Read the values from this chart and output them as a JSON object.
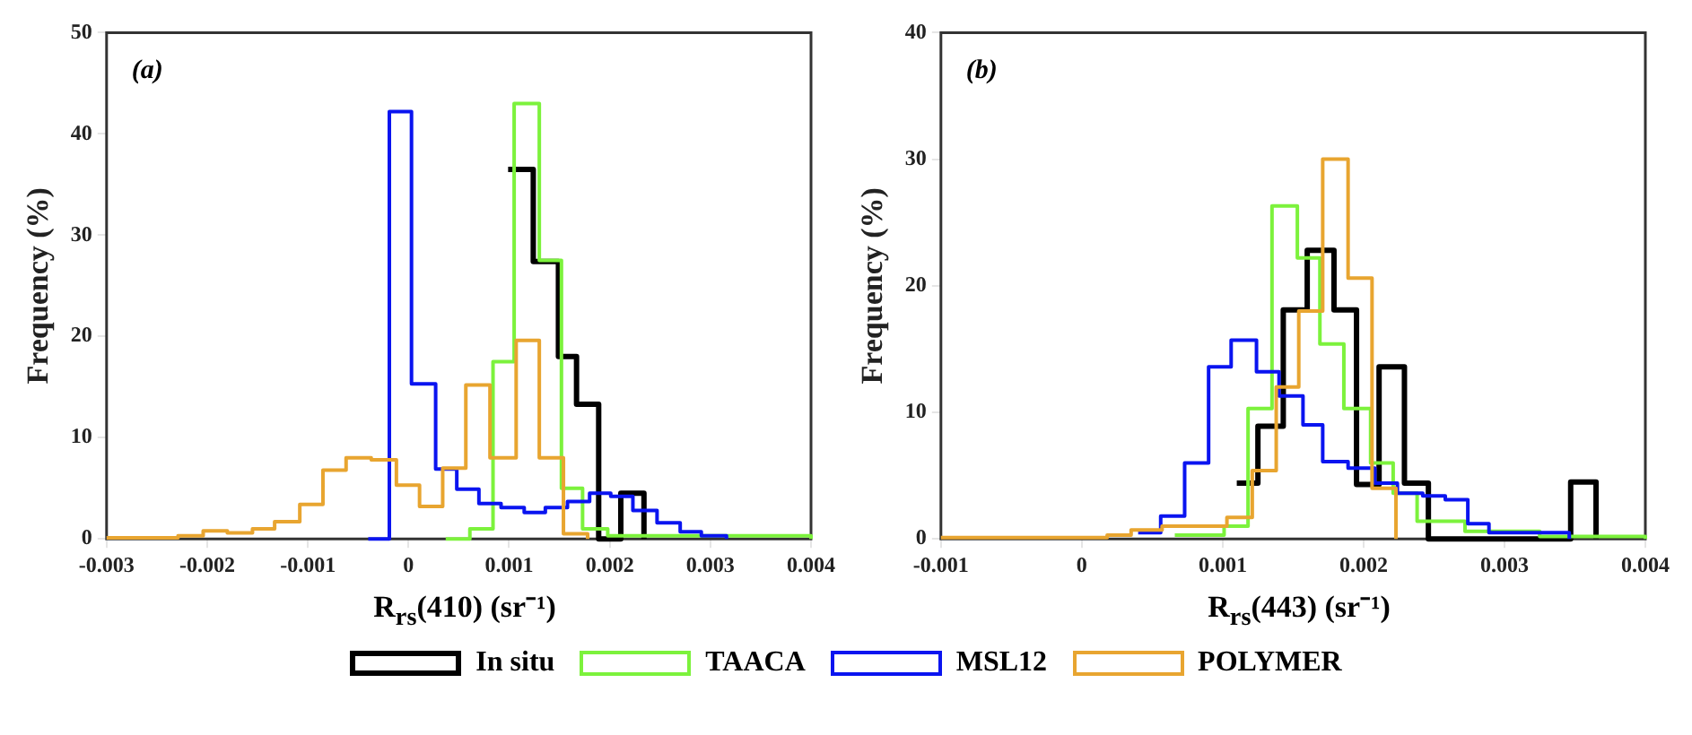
{
  "chart_data": [
    {
      "type": "step",
      "xlabel": "R$_{rs}$(410) (sr⁻¹)",
      "ylabel": "Frequency (%)",
      "annotations": [
        "(a)"
      ],
      "xlim": [
        -0.003,
        0.004
      ],
      "xticks": [
        -0.003,
        -0.002,
        -0.001,
        0,
        0.001,
        0.002,
        0.003,
        0.004
      ],
      "ylim": [
        0,
        50
      ],
      "yticks": [
        0,
        10,
        20,
        30,
        40,
        50
      ],
      "grid": false,
      "legend": "bottom",
      "series": [
        {
          "name": "In situ",
          "color": "#000000",
          "x": [
            0.00099,
            0.00124,
            0.00149,
            0.00167,
            0.00189,
            0.00211,
            0.00234
          ],
          "values": [
            36.5,
            27.4,
            18,
            13.3,
            0,
            4.5,
            0
          ]
        },
        {
          "name": "TAACA",
          "color": "#7cf23c",
          "x": [
            0.00037,
            0.00061,
            0.00084,
            0.00105,
            0.0013,
            0.00152,
            0.00173,
            0.00198,
            0.004
          ],
          "values": [
            0,
            1,
            17.5,
            43,
            27.5,
            5,
            1,
            0.3,
            0
          ]
        },
        {
          "name": "MSL12",
          "color": "#0a14f0",
          "x": [
            -0.0004,
            -0.00019,
            3e-05,
            0.00027,
            0.00048,
            0.0007,
            0.00092,
            0.00115,
            0.00136,
            0.00158,
            0.0018,
            0.00201,
            0.00223,
            0.00247,
            0.0027,
            0.00291,
            0.00316
          ],
          "values": [
            0,
            42.2,
            15.3,
            6.9,
            4.9,
            3.5,
            3.1,
            2.6,
            3.1,
            3.7,
            4.5,
            4.2,
            2.8,
            1.6,
            0.7,
            0.3,
            0
          ]
        },
        {
          "name": "POLYMER",
          "color": "#e8a530",
          "x": [
            -0.003,
            -0.00229,
            -0.00204,
            -0.0018,
            -0.00155,
            -0.00133,
            -0.00108,
            -0.00085,
            -0.00062,
            -0.00037,
            -0.00012,
            0.00011,
            0.00034,
            0.00057,
            0.00081,
            0.00107,
            0.0013,
            0.00154,
            0.00178
          ],
          "values": [
            0.1,
            0.3,
            0.8,
            0.6,
            1,
            1.7,
            3.4,
            6.8,
            8,
            7.8,
            5.3,
            3.2,
            7,
            15.2,
            8,
            19.6,
            8,
            0.5,
            0
          ]
        }
      ]
    },
    {
      "type": "step",
      "xlabel": "R$_{rs}$(443) (sr⁻¹)",
      "ylabel": "Frequency (%)",
      "annotations": [
        "(b)"
      ],
      "xlim": [
        -0.001,
        0.004
      ],
      "xticks": [
        -0.001,
        0,
        0.001,
        0.002,
        0.003,
        0.004
      ],
      "ylim": [
        0,
        40
      ],
      "yticks": [
        0,
        10,
        20,
        30,
        40
      ],
      "grid": false,
      "series": [
        {
          "color": "#000000",
          "x": [
            0.0011,
            0.00125,
            0.00143,
            0.0016,
            0.00179,
            0.00195,
            0.00211,
            0.00229,
            0.00246,
            0.00347,
            0.00365
          ],
          "values": [
            4.4,
            8.9,
            18.1,
            22.8,
            18.1,
            4.3,
            13.6,
            4.4,
            0,
            4.5,
            0
          ]
        },
        {
          "color": "#7cf23c",
          "x": [
            0.00066,
            0.00101,
            0.00118,
            0.00135,
            0.00153,
            0.00169,
            0.00186,
            0.00205,
            0.00221,
            0.00238,
            0.00272,
            0.00325,
            0.004
          ],
          "values": [
            0.3,
            1,
            10.3,
            26.3,
            22.2,
            15.4,
            10.3,
            6,
            3.6,
            1.4,
            0.6,
            0.2,
            0
          ]
        },
        {
          "color": "#0a14f0",
          "x": [
            0.0004,
            0.00056,
            0.00073,
            0.0009,
            0.00106,
            0.00124,
            0.0014,
            0.00157,
            0.00171,
            0.00189,
            0.00208,
            0.00224,
            0.00242,
            0.00258,
            0.00274,
            0.00289,
            0.00346
          ],
          "values": [
            0.5,
            1.8,
            6,
            13.6,
            15.7,
            13.2,
            11.3,
            9,
            6.1,
            5.6,
            4.4,
            3.6,
            3.4,
            3.1,
            1.2,
            0.5,
            0
          ]
        },
        {
          "color": "#e8a530",
          "x": [
            -0.001,
            0.00018,
            0.00035,
            0.00057,
            0.00103,
            0.00121,
            0.00138,
            0.00154,
            0.00171,
            0.00189,
            0.00206,
            0.00223
          ],
          "values": [
            0.1,
            0.3,
            0.7,
            1,
            1.7,
            5.4,
            12,
            18,
            30,
            20.6,
            4,
            0
          ]
        }
      ]
    }
  ]
}
